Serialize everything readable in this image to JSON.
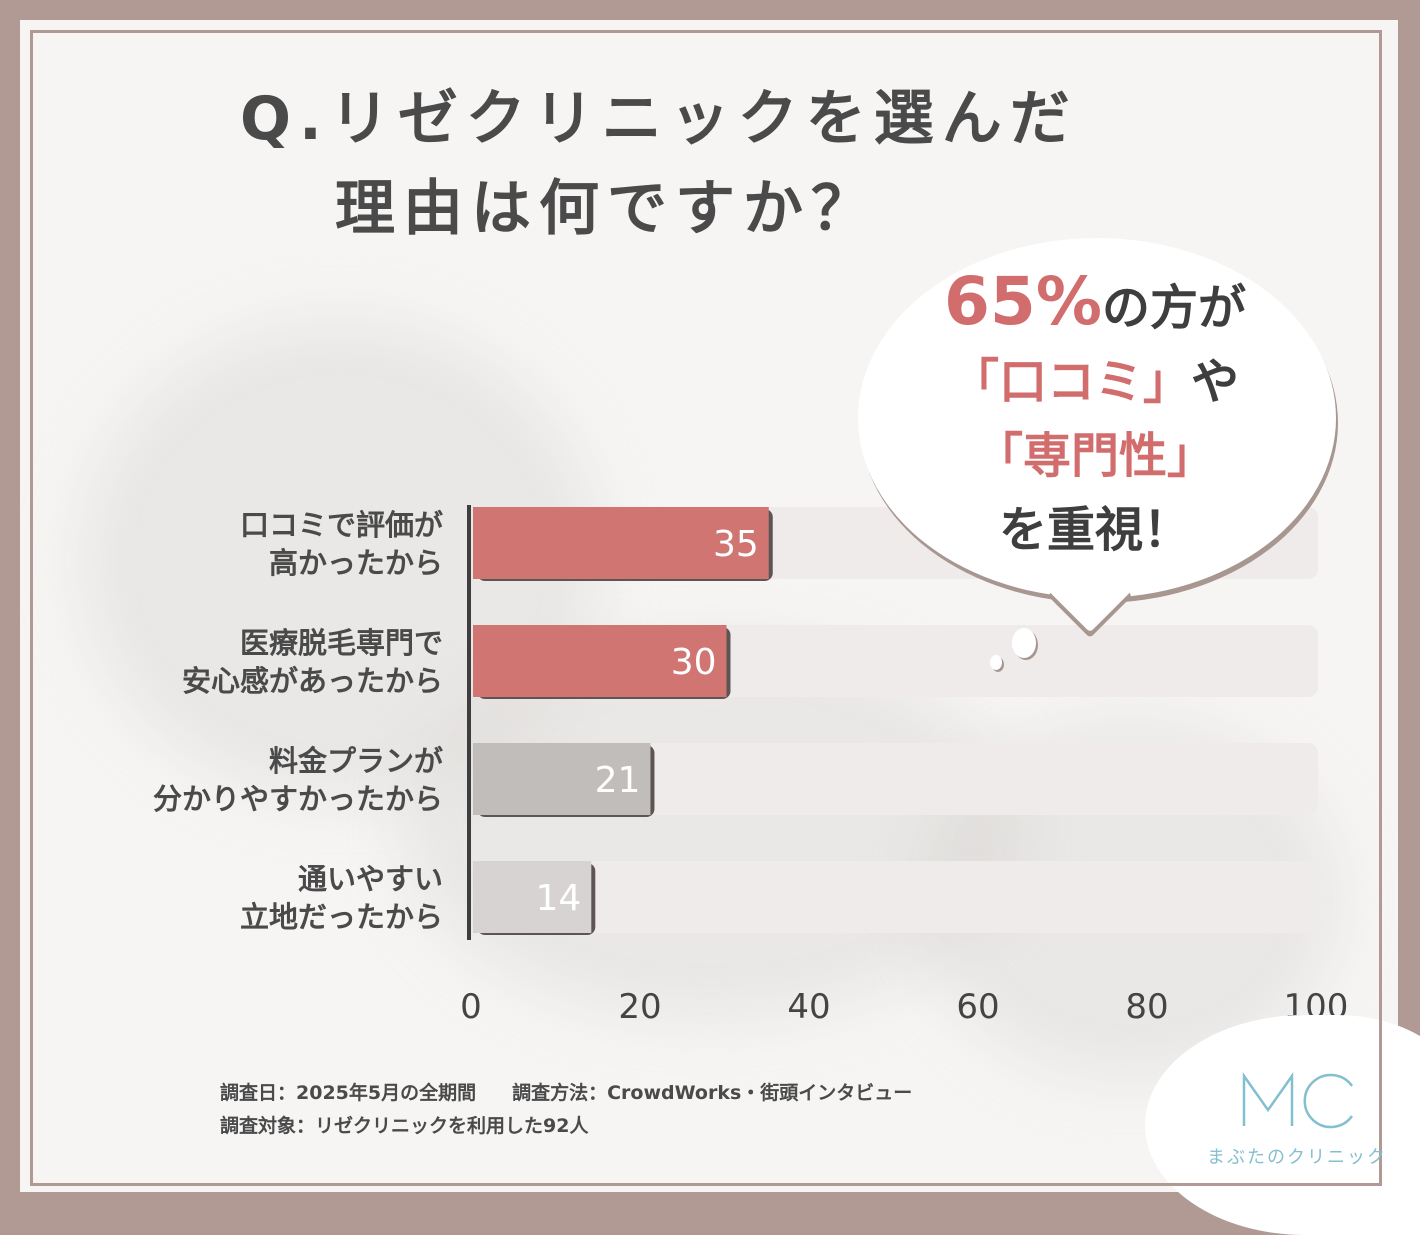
{
  "title": {
    "line1": "Q.リゼクリニックを選んだ",
    "line2": "理由は何ですか？"
  },
  "callout": {
    "percent": "65%",
    "line1_rest": "の方が",
    "line2_quote": "「口コミ」",
    "line2_rest": "や",
    "line3_quote": "「専門性」",
    "line4": "を重視！"
  },
  "colors": {
    "highlight": "#d07572",
    "bar_gray": "#c1bdbb",
    "bar_lightgray": "#d6d3d2",
    "track": "#efebea",
    "frame": "#b19a93",
    "logo": "#84bfd0"
  },
  "chart_data": {
    "type": "bar",
    "orientation": "horizontal",
    "categories": [
      "口コミで評価が高かったから",
      "医療脱毛専門で安心感があったから",
      "料金プランが分かりやすかったから",
      "通いやすい立地だったから"
    ],
    "category_lines": [
      [
        "口コミで評価が",
        "高かったから"
      ],
      [
        "医療脱毛専門で",
        "安心感があったから"
      ],
      [
        "料金プランが",
        "分かりやすかったから"
      ],
      [
        "通いやすい",
        "立地だったから"
      ]
    ],
    "values": [
      35,
      30,
      21,
      14
    ],
    "value_labels": [
      "35",
      "30",
      "21",
      "14"
    ],
    "xlim": [
      0,
      100
    ],
    "x_ticks": [
      "0",
      "20",
      "40",
      "60",
      "80",
      "100"
    ],
    "grid": false
  },
  "footer": {
    "survey_date": "調査日：2025年5月の全期間",
    "survey_method": "調査方法：CrowdWorks・街頭インタビュー",
    "survey_target": "調査対象：リゼクリニックを利用した92人"
  },
  "logo": {
    "mark": "MC",
    "name": "まぶたのクリニック"
  }
}
